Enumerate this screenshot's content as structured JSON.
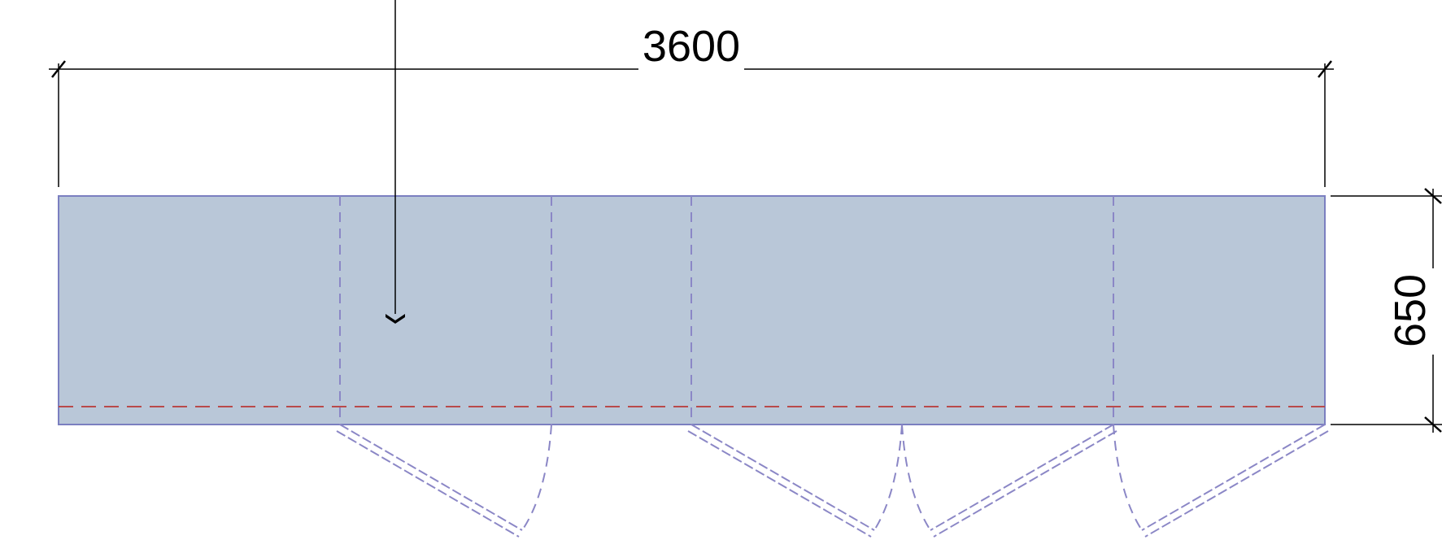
{
  "dimensions": {
    "width_label": "3600",
    "depth_label": "650"
  },
  "colors": {
    "counter_fill": "#b9c7d8",
    "counter_outline": "#7b7fc0",
    "door_line": "#8b87c6",
    "front_edge": "#b94a4a",
    "dimension_line": "#000000"
  },
  "cabinet_doors": [
    {
      "hinge": "left",
      "swing": "single"
    },
    {
      "hinge": "left",
      "swing": "double"
    },
    {
      "hinge": "right",
      "swing": "double"
    }
  ]
}
